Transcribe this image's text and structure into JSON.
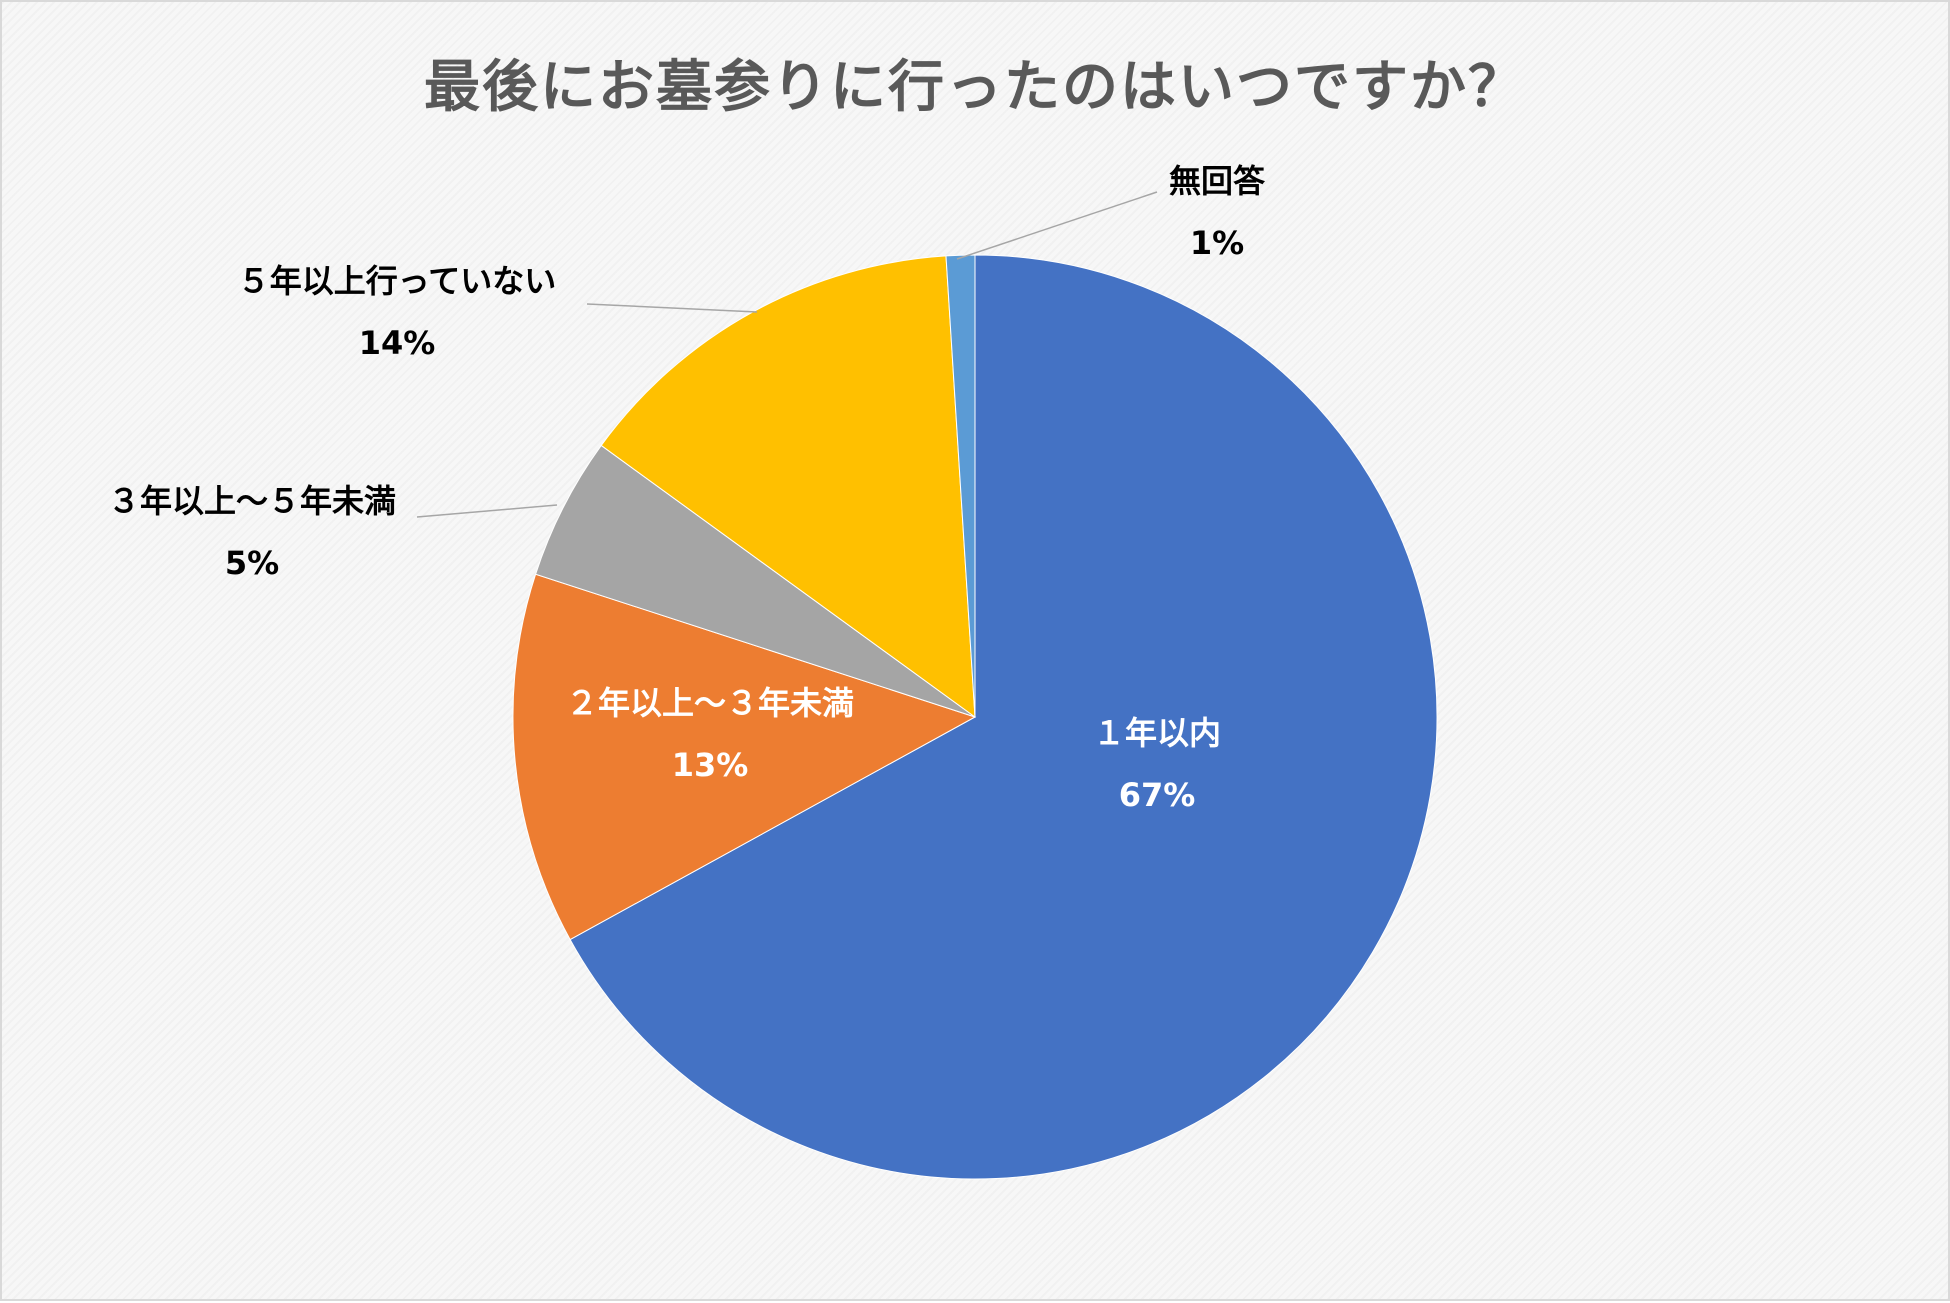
{
  "chart_data": {
    "type": "pie",
    "title": "最後にお墓参りに行ったのはいつですか？",
    "slices": [
      {
        "label": "１年以内",
        "value": 67,
        "value_label": "67%",
        "color": "#4472C4",
        "label_color": "#FFFFFF"
      },
      {
        "label": "２年以上～３年未満",
        "value": 13,
        "value_label": "13%",
        "color": "#ED7D31",
        "label_color": "#FFFFFF"
      },
      {
        "label": "３年以上～５年未満",
        "value": 5,
        "value_label": "5%",
        "color": "#A5A5A5",
        "label_color": "#000000"
      },
      {
        "label": "５年以上行っていない",
        "value": 14,
        "value_label": "14%",
        "color": "#FFC000",
        "label_color": "#000000"
      },
      {
        "label": "無回答",
        "value": 1,
        "value_label": "1%",
        "color": "#5B9BD5",
        "label_color": "#000000"
      }
    ],
    "start_angle": "12 o'clock",
    "direction": "clockwise",
    "legend": "none",
    "leader_line_color": "#A6A6A6"
  }
}
